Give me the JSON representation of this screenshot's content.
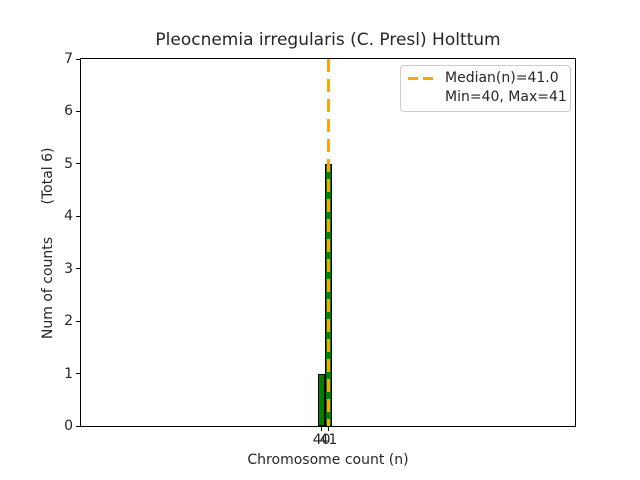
{
  "chart_data": {
    "type": "bar",
    "title": "Pleocnemia irregularis (C. Presl) Holttum",
    "xlabel": "Chromosome count (n)",
    "ylabel": "Num of counts",
    "ylabel_note": "(Total 6)",
    "categories": [
      40,
      41
    ],
    "values": [
      1,
      5
    ],
    "total_counts": 6,
    "xticks": [
      40,
      41
    ],
    "yticks": [
      0,
      1,
      2,
      3,
      4,
      5,
      6,
      7
    ],
    "ylim": [
      0,
      7
    ],
    "bar_color": "#008000",
    "bar_edge_color": "#000000",
    "median_line": {
      "value": 41.0,
      "color": "#FFA500",
      "style": "dashed"
    },
    "legend": {
      "position": "upper right",
      "entries": [
        {
          "label": "Median(n)=41.0",
          "symbol": "dashed-line",
          "color": "#FFA500"
        },
        {
          "label": "Min=40, Max=41",
          "symbol": "none",
          "color": ""
        }
      ]
    },
    "grid": false
  }
}
